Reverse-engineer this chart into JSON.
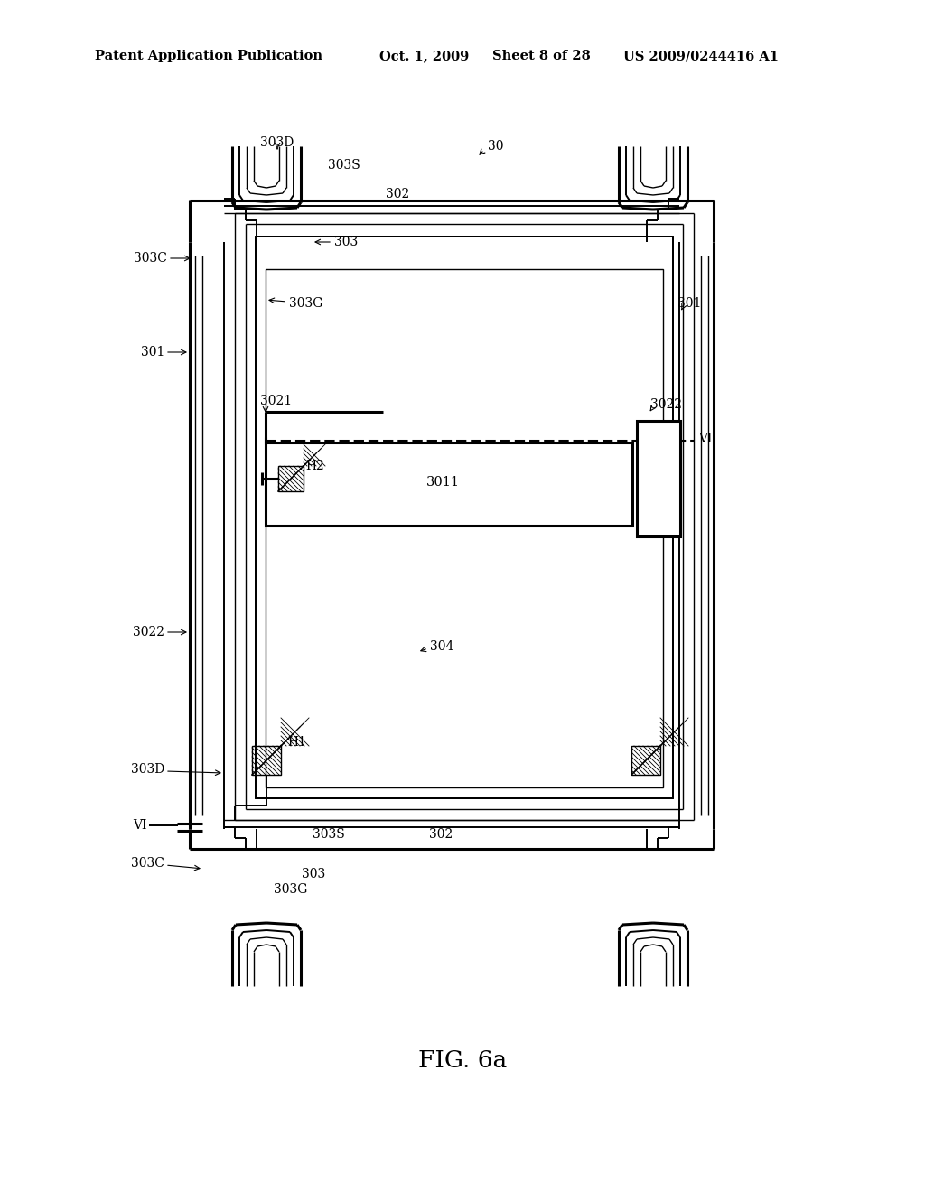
{
  "bg_color": "#ffffff",
  "line_color": "#000000",
  "header_text": "Patent Application Publication",
  "header_date": "Oct. 1, 2009",
  "header_sheet": "Sheet 8 of 28",
  "header_patent": "US 2009/0244416 A1",
  "figure_label": "FIG. 6a"
}
